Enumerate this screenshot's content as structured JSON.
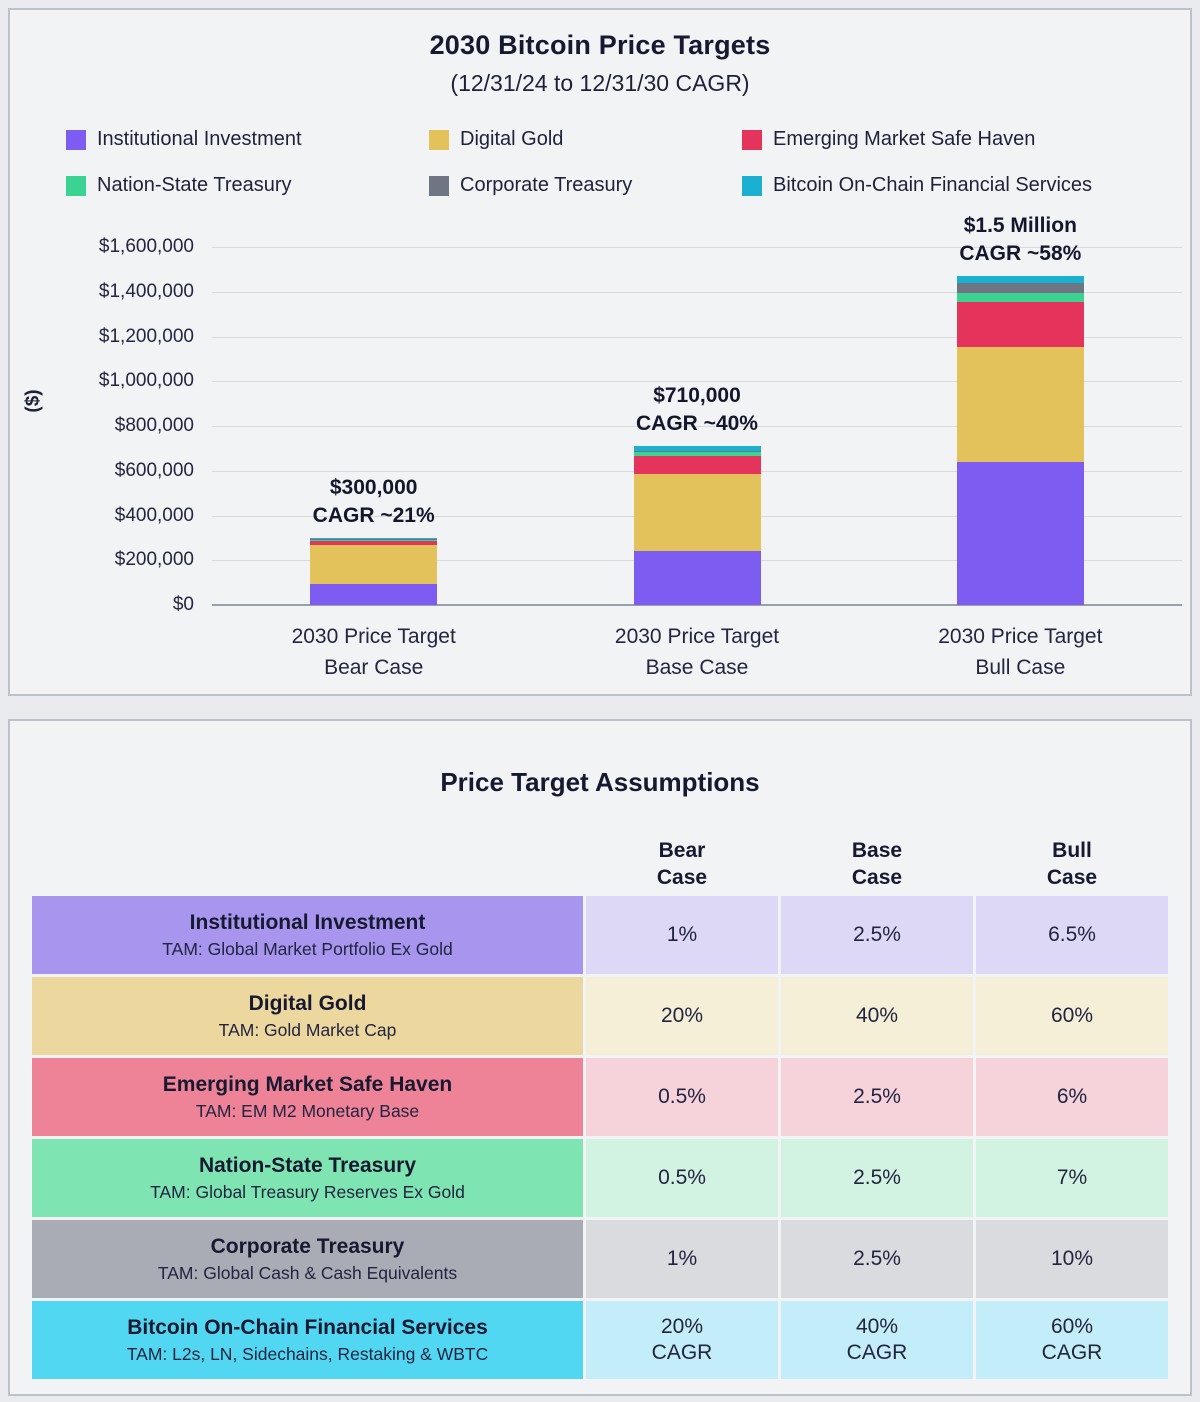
{
  "chart_data": [
    {
      "type": "bar",
      "stacked": true,
      "title": "2030 Bitcoin Price Targets",
      "subtitle": "(12/31/24 to 12/31/30 CAGR)",
      "ylabel": "($)",
      "ylim": [
        0,
        1600000
      ],
      "yticks": [
        0,
        200000,
        400000,
        600000,
        800000,
        1000000,
        1200000,
        1400000,
        1600000
      ],
      "ytick_labels": [
        "$0",
        "$200,000",
        "$400,000",
        "$600,000",
        "$800,000",
        "$1,000,000",
        "$1,200,000",
        "$1,400,000",
        "$1,600,000"
      ],
      "grid": true,
      "legend_position": "top-left",
      "categories": [
        [
          "2030 Price Target",
          "Bear Case"
        ],
        [
          "2030 Price Target",
          "Base Case"
        ],
        [
          "2030 Price Target",
          "Bull Case"
        ]
      ],
      "series": [
        {
          "name": "Institutional Investment",
          "color": "#7d5df1",
          "values": [
            95000,
            240000,
            640000
          ]
        },
        {
          "name": "Digital Gold",
          "color": "#e3c25c",
          "values": [
            175000,
            345000,
            515000
          ]
        },
        {
          "name": "Emerging Market Safe Haven",
          "color": "#e5345c",
          "values": [
            18000,
            80000,
            200000
          ]
        },
        {
          "name": "Nation-State Treasury",
          "color": "#3bd392",
          "values": [
            2000,
            20000,
            40000
          ]
        },
        {
          "name": "Corporate Treasury",
          "color": "#6e7684",
          "values": [
            3000,
            5000,
            45000
          ]
        },
        {
          "name": "Bitcoin On-Chain Financial Services",
          "color": "#19b0d2",
          "values": [
            7000,
            20000,
            30000
          ]
        }
      ],
      "bar_annotations": [
        {
          "total_label": "$300,000",
          "cagr_label": "CAGR ~21%"
        },
        {
          "total_label": "$710,000",
          "cagr_label": "CAGR ~40%"
        },
        {
          "total_label": "$1.5 Million",
          "cagr_label": "CAGR ~58%"
        }
      ]
    },
    {
      "type": "table",
      "title": "Price Target Assumptions",
      "column_headers": [
        [
          "Bear",
          "Case"
        ],
        [
          "Base",
          "Case"
        ],
        [
          "Bull",
          "Case"
        ]
      ],
      "rows": [
        {
          "name": "Institutional Investment",
          "tam": "TAM: Global Market Portfolio Ex Gold",
          "label_bg": "#a795ee",
          "cell_bg": "#ddd8f6",
          "values": [
            [
              "1%"
            ],
            [
              "2.5%"
            ],
            [
              "6.5%"
            ]
          ]
        },
        {
          "name": "Digital Gold",
          "tam": "TAM: Gold Market Cap",
          "label_bg": "#ecd89e",
          "cell_bg": "#f6efd8",
          "values": [
            [
              "20%"
            ],
            [
              "40%"
            ],
            [
              "60%"
            ]
          ]
        },
        {
          "name": "Emerging Market Safe Haven",
          "tam": "TAM: EM M2 Monetary Base",
          "label_bg": "#ee8297",
          "cell_bg": "#f6d3db",
          "values": [
            [
              "0.5%"
            ],
            [
              "2.5%"
            ],
            [
              "6%"
            ]
          ]
        },
        {
          "name": "Nation-State Treasury",
          "tam": "TAM: Global Treasury Reserves Ex Gold",
          "label_bg": "#7ee4b2",
          "cell_bg": "#d3f3e2",
          "values": [
            [
              "0.5%"
            ],
            [
              "2.5%"
            ],
            [
              "7%"
            ]
          ]
        },
        {
          "name": "Corporate Treasury",
          "tam": "TAM: Global Cash & Cash Equivalents",
          "label_bg": "#a9acb5",
          "cell_bg": "#dadbde",
          "values": [
            [
              "1%"
            ],
            [
              "2.5%"
            ],
            [
              "10%"
            ]
          ]
        },
        {
          "name": "Bitcoin On-Chain Financial Services",
          "tam": "TAM: L2s, LN, Sidechains, Restaking & WBTC",
          "label_bg": "#51d7f1",
          "cell_bg": "#c3edf8",
          "values": [
            [
              "20%",
              "CAGR"
            ],
            [
              "40%",
              "CAGR"
            ],
            [
              "60%",
              "CAGR"
            ]
          ]
        }
      ]
    }
  ]
}
